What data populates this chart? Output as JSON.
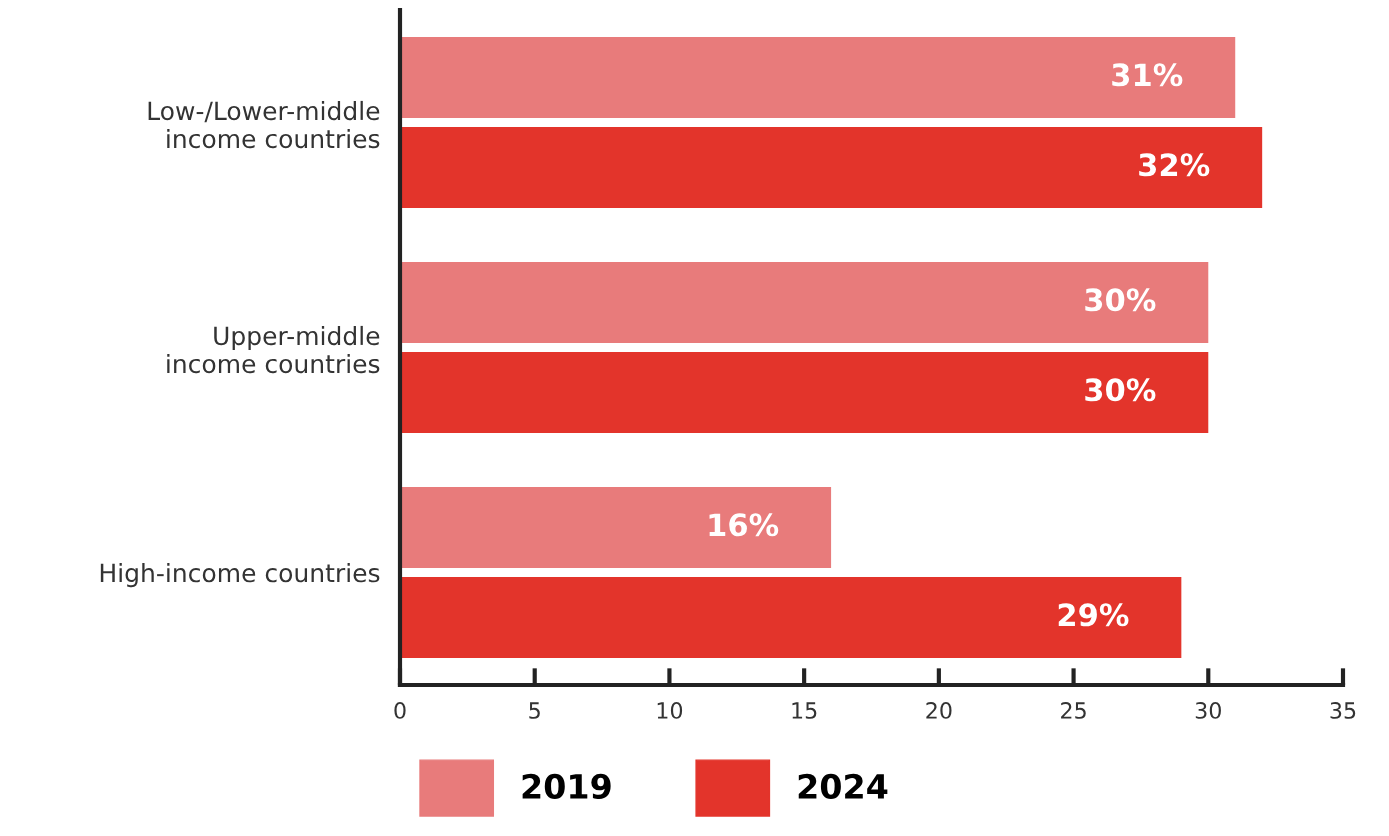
{
  "chart_data": {
    "type": "bar",
    "orientation": "horizontal",
    "categories": [
      "Low-/Lower-middle\nincome countries",
      "Upper-middle\nincome countries",
      "High-income countries"
    ],
    "series": [
      {
        "name": "2019",
        "color": "#e87b7b",
        "values": [
          31,
          30,
          16
        ],
        "value_labels": [
          "31%",
          "30%",
          "16%"
        ]
      },
      {
        "name": "2024",
        "color": "#e3342b",
        "values": [
          32,
          30,
          29
        ],
        "value_labels": [
          "32%",
          "30%",
          "29%"
        ]
      }
    ],
    "xlim": [
      0,
      35
    ],
    "xticks": [
      0,
      5,
      10,
      15,
      20,
      25,
      30,
      35
    ],
    "grid": false,
    "legend": "bottom"
  }
}
